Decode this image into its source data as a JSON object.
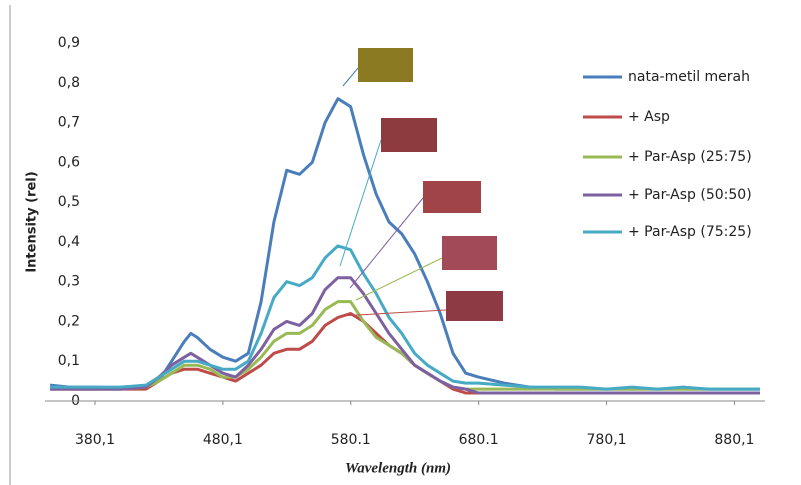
{
  "chart_data": {
    "type": "line",
    "x_label": "Wavelength (nm)",
    "y_label": "Intensity (rel)",
    "x": [
      345,
      360,
      380,
      400,
      420,
      430,
      440,
      450,
      455,
      460,
      470,
      480,
      490,
      500,
      510,
      520,
      530,
      540,
      550,
      560,
      570,
      580,
      590,
      600,
      610,
      620,
      630,
      640,
      650,
      660,
      670,
      680,
      700,
      720,
      740,
      760,
      780,
      800,
      820,
      840,
      860,
      880,
      900
    ],
    "series": [
      {
        "name": "nata-metil merah",
        "color": "#4a7ebb",
        "values": [
          0.04,
          0.035,
          0.035,
          0.03,
          0.035,
          0.05,
          0.1,
          0.15,
          0.17,
          0.16,
          0.13,
          0.11,
          0.1,
          0.12,
          0.25,
          0.45,
          0.58,
          0.57,
          0.6,
          0.7,
          0.76,
          0.74,
          0.62,
          0.52,
          0.45,
          0.42,
          0.37,
          0.3,
          0.22,
          0.12,
          0.07,
          0.06,
          0.045,
          0.035,
          0.03,
          0.03,
          0.03,
          0.03,
          0.03,
          0.03,
          0.03,
          0.03,
          0.03
        ]
      },
      {
        "name": "+ Asp",
        "color": "#be4b48",
        "values": [
          0.03,
          0.03,
          0.03,
          0.03,
          0.03,
          0.05,
          0.07,
          0.08,
          0.08,
          0.08,
          0.07,
          0.06,
          0.05,
          0.07,
          0.09,
          0.12,
          0.13,
          0.13,
          0.15,
          0.19,
          0.21,
          0.22,
          0.2,
          0.17,
          0.14,
          0.12,
          0.09,
          0.07,
          0.05,
          0.03,
          0.02,
          0.02,
          0.02,
          0.02,
          0.02,
          0.02,
          0.02,
          0.02,
          0.02,
          0.02,
          0.02,
          0.02,
          0.02
        ]
      },
      {
        "name": "+ Par-Asp (25:75)",
        "color": "#98b954",
        "values": [
          0.03,
          0.03,
          0.03,
          0.03,
          0.035,
          0.05,
          0.07,
          0.09,
          0.09,
          0.09,
          0.08,
          0.06,
          0.06,
          0.08,
          0.11,
          0.15,
          0.17,
          0.17,
          0.19,
          0.23,
          0.25,
          0.25,
          0.2,
          0.16,
          0.14,
          0.12,
          0.09,
          0.07,
          0.05,
          0.035,
          0.03,
          0.03,
          0.03,
          0.03,
          0.03,
          0.03,
          0.03,
          0.03,
          0.03,
          0.03,
          0.03,
          0.03,
          0.03
        ]
      },
      {
        "name": "+ Par-Asp (50:50)",
        "color": "#7d60a0",
        "values": [
          0.03,
          0.03,
          0.03,
          0.03,
          0.035,
          0.06,
          0.09,
          0.11,
          0.12,
          0.11,
          0.09,
          0.07,
          0.06,
          0.09,
          0.13,
          0.18,
          0.2,
          0.19,
          0.22,
          0.28,
          0.31,
          0.31,
          0.27,
          0.22,
          0.17,
          0.13,
          0.09,
          0.07,
          0.05,
          0.035,
          0.03,
          0.02,
          0.02,
          0.02,
          0.02,
          0.02,
          0.02,
          0.02,
          0.02,
          0.02,
          0.02,
          0.02,
          0.02
        ]
      },
      {
        "name": "+ Par-Asp (75:25)",
        "color": "#46aac5",
        "values": [
          0.035,
          0.035,
          0.035,
          0.035,
          0.04,
          0.06,
          0.08,
          0.1,
          0.1,
          0.1,
          0.09,
          0.08,
          0.08,
          0.1,
          0.17,
          0.26,
          0.3,
          0.29,
          0.31,
          0.36,
          0.39,
          0.38,
          0.32,
          0.27,
          0.21,
          0.17,
          0.12,
          0.09,
          0.07,
          0.05,
          0.045,
          0.045,
          0.04,
          0.035,
          0.035,
          0.035,
          0.03,
          0.035,
          0.03,
          0.035,
          0.03,
          0.03,
          0.03
        ]
      }
    ],
    "xlim": [
      341,
      904
    ],
    "ylim": [
      0,
      0.9
    ],
    "xticks": [
      {
        "value": 380.1,
        "label": "380,1"
      },
      {
        "value": 480.1,
        "label": "480,1"
      },
      {
        "value": 580.1,
        "label": "580.1"
      },
      {
        "value": 680.1,
        "label": "680.1"
      },
      {
        "value": 780.1,
        "label": "780,1"
      },
      {
        "value": 880.1,
        "label": "880,1"
      }
    ],
    "yticks": [
      0,
      {
        "value": 0.1,
        "label": "0,1"
      },
      {
        "value": 0.2,
        "label": "0,2"
      },
      {
        "value": 0.3,
        "label": "0,3"
      },
      {
        "value": 0.4,
        "label": "0,4"
      },
      {
        "value": 0.5,
        "label": "0,5"
      },
      {
        "value": 0.6,
        "label": "0,6"
      },
      {
        "value": 0.7,
        "label": "0,7"
      },
      {
        "value": 0.8,
        "label": "0,8"
      },
      {
        "value": 0.9,
        "label": "0,9"
      }
    ],
    "grid": false,
    "legend": "right"
  }
}
